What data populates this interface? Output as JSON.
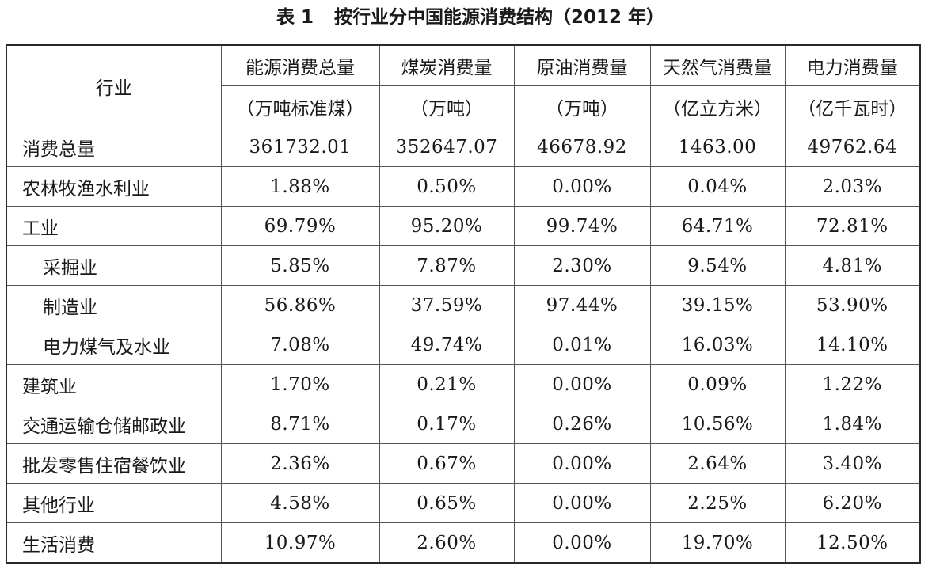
{
  "title": {
    "prefix": "表 1",
    "text": "按行业分中国能源消费结构（2012 年）"
  },
  "table": {
    "industry_header": "行业",
    "columns": [
      {
        "name": "能源消费总量",
        "unit": "（万吨标准煤）"
      },
      {
        "name": "煤炭消费量",
        "unit": "（万吨）"
      },
      {
        "name": "原油消费量",
        "unit": "（万吨）"
      },
      {
        "name": "天然气消费量",
        "unit": "（亿立方米）"
      },
      {
        "name": "电力消费量",
        "unit": "（亿千瓦时）"
      }
    ],
    "rows": [
      {
        "label": "消费总量",
        "values": [
          "361732.01",
          "352647.07",
          "46678.92",
          "1463.00",
          "49762.64"
        ]
      },
      {
        "label": "农林牧渔水利业",
        "values": [
          "1.88%",
          "0.50%",
          "0.00%",
          "0.04%",
          "2.03%"
        ]
      },
      {
        "label": "工业",
        "values": [
          "69.79%",
          "95.20%",
          "99.74%",
          "64.71%",
          "72.81%"
        ]
      },
      {
        "label": "采掘业",
        "values": [
          "5.85%",
          "7.87%",
          "2.30%",
          "9.54%",
          "4.81%"
        ]
      },
      {
        "label": "制造业",
        "values": [
          "56.86%",
          "37.59%",
          "97.44%",
          "39.15%",
          "53.90%"
        ]
      },
      {
        "label": "电力煤气及水业",
        "values": [
          "7.08%",
          "49.74%",
          "0.01%",
          "16.03%",
          "14.10%"
        ]
      },
      {
        "label": "建筑业",
        "values": [
          "1.70%",
          "0.21%",
          "0.00%",
          "0.09%",
          "1.22%"
        ]
      },
      {
        "label": "交通运输仓储邮政业",
        "values": [
          "8.71%",
          "0.17%",
          "0.26%",
          "10.56%",
          "1.84%"
        ]
      },
      {
        "label": "批发零售住宿餐饮业",
        "values": [
          "2.36%",
          "0.67%",
          "0.00%",
          "2.64%",
          "3.40%"
        ]
      },
      {
        "label": "其他行业",
        "values": [
          "4.58%",
          "0.65%",
          "0.00%",
          "2.25%",
          "6.20%"
        ]
      },
      {
        "label": "生活消费",
        "values": [
          "10.97%",
          "2.60%",
          "0.00%",
          "19.70%",
          "12.50%"
        ]
      }
    ]
  }
}
